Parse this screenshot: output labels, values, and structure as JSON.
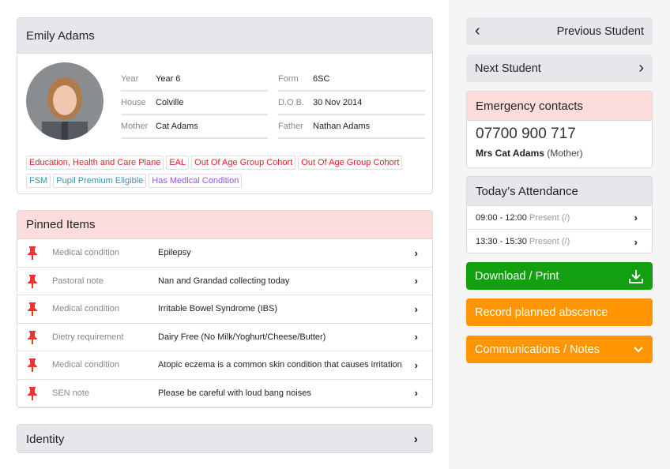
{
  "student": {
    "name": "Emily Adams",
    "fields": [
      {
        "label": "Year",
        "value": "Year 6"
      },
      {
        "label": "Form",
        "value": "6SC"
      },
      {
        "label": "House",
        "value": "Colville"
      },
      {
        "label": "D.O.B.",
        "value": "30 Nov 2014"
      },
      {
        "label": "Mother",
        "value": "Cat Adams"
      },
      {
        "label": "Father",
        "value": "Nathan Adams"
      }
    ],
    "tags": [
      {
        "text": "Education, Health and Care Plane",
        "color": "#e0202a"
      },
      {
        "text": "EAL",
        "color": "#e0202a"
      },
      {
        "text": "Out Of Age Group Cohort",
        "color": "#e0202a"
      },
      {
        "text": "Out Of Age Group Cohort",
        "color": "#e0202a"
      },
      {
        "text": "FSM",
        "color": "#3a93a8"
      },
      {
        "text": "Pupil Premium Eligible",
        "color": "#3a93a8"
      },
      {
        "text": "Has Medical Condition",
        "color": "#9b4ff0"
      }
    ]
  },
  "pinned": {
    "title": "Pinned Items",
    "items": [
      {
        "type": "Medical condition",
        "text": "Epilepsy"
      },
      {
        "type": "Pastoral note",
        "text": "Nan and Grandad collecting today"
      },
      {
        "type": "Medical condition",
        "text": "Irritable Bowel Syndrome (IBS)"
      },
      {
        "type": "Dietry requirement",
        "text": "Dairy Free (No Milk/Yoghurt/Cheese/Butter)"
      },
      {
        "type": "Medical condition",
        "text": "Atopic eczema is a common skin condition that causes irritation"
      },
      {
        "type": "SEN note",
        "text": "Please be careful with loud bang noises"
      }
    ]
  },
  "identity": {
    "title": "Identity"
  },
  "nav": {
    "previous": "Previous Student",
    "next": "Next Student"
  },
  "emergency": {
    "title": "Emergency contacts",
    "phone": "07700 900 717",
    "name": "Mrs Cat Adams",
    "relation": "(Mother)"
  },
  "attendance": {
    "title": "Today’s Attendance",
    "sessions": [
      {
        "time": "09:00 - 12:00",
        "status": "Present (/)"
      },
      {
        "time": "13:30 - 15:30",
        "status": "Present (/)"
      }
    ]
  },
  "actions": {
    "download": "Download / Print",
    "absence": "Record planned abscence",
    "comms": "Communications / Notes"
  },
  "colors": {
    "green": "#13a010",
    "orange": "#ff9500",
    "pin": "#e33"
  }
}
